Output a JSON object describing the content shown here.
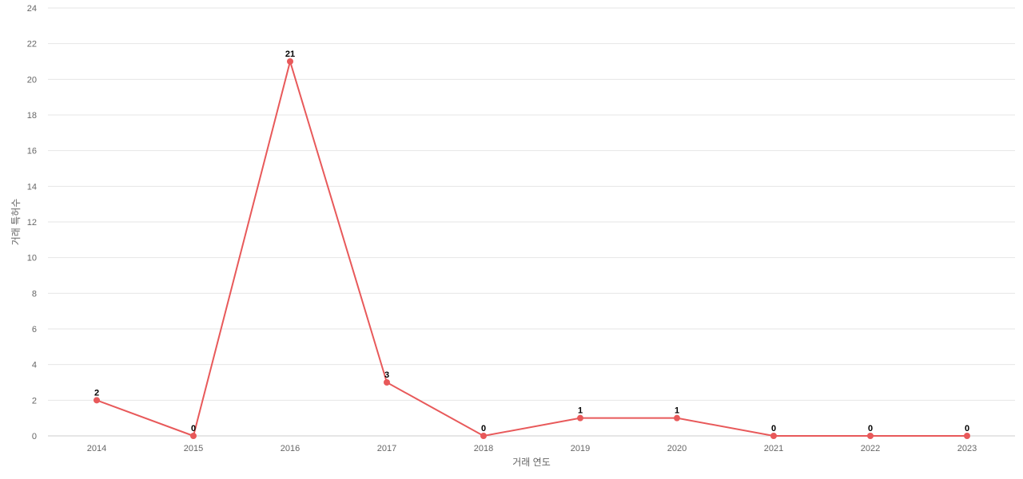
{
  "chart_data": {
    "type": "line",
    "title": "",
    "xlabel": "거래 연도",
    "ylabel": "거래 특허수",
    "ylim": [
      0,
      24
    ],
    "y_ticks": [
      0,
      2,
      4,
      6,
      8,
      10,
      12,
      14,
      16,
      18,
      20,
      22,
      24
    ],
    "categories": [
      "2014",
      "2015",
      "2016",
      "2017",
      "2018",
      "2019",
      "2020",
      "2021",
      "2022",
      "2023"
    ],
    "series": [
      {
        "values": [
          2,
          0,
          21,
          3,
          0,
          1,
          1,
          0,
          0,
          0
        ],
        "color": "#e8595a"
      }
    ],
    "grid": true,
    "data_labels": true,
    "legend": "none"
  }
}
